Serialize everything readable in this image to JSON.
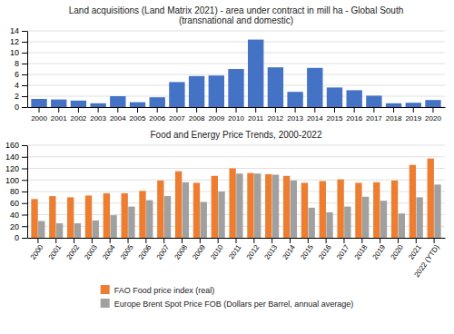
{
  "chart_data": [
    {
      "type": "bar",
      "title": "Land acquisitions (Land Matrix 2021) - area under contract in mill ha - Global South\n(transnational and domestic)",
      "categories": [
        "2000",
        "2001",
        "2002",
        "2003",
        "2004",
        "2005",
        "2006",
        "2007",
        "2008",
        "2009",
        "2010",
        "2011",
        "2012",
        "2013",
        "2014",
        "2015",
        "2016",
        "2017",
        "2018",
        "2019",
        "2020"
      ],
      "values": [
        1.5,
        1.4,
        1.2,
        0.7,
        2.0,
        0.9,
        1.8,
        4.6,
        5.7,
        5.8,
        7.0,
        12.4,
        7.3,
        2.8,
        7.2,
        3.6,
        3.1,
        2.1,
        0.7,
        0.8,
        1.3
      ],
      "color": "#4472c4",
      "ylim": [
        0,
        14
      ],
      "yticks": [
        0,
        2,
        4,
        6,
        8,
        10,
        12,
        14
      ],
      "grid": true
    },
    {
      "type": "bar",
      "title": "Food and Energy Price Trends, 2000-2022",
      "categories": [
        "2000",
        "2001",
        "2002",
        "2003",
        "2004",
        "2005",
        "2006",
        "2007",
        "2008",
        "2009",
        "2010",
        "2011",
        "2012",
        "2013",
        "2014",
        "2015",
        "2016",
        "2017",
        "2018",
        "2019",
        "2020",
        "2021",
        "2022 (YTD)"
      ],
      "series": [
        {
          "name": "FAO Food price index (real)",
          "color": "#ed7d31",
          "values": [
            67,
            72,
            70,
            73,
            77,
            77,
            81,
            99,
            115,
            95,
            107,
            120,
            112,
            110,
            107,
            95,
            98,
            101,
            95,
            96,
            99,
            126,
            137
          ]
        },
        {
          "name": "Europe Brent Spot Price FOB (Dollars per Barrel, annual average)",
          "color": "#a0a0a0",
          "values": [
            29,
            25,
            25,
            30,
            39,
            54,
            65,
            72,
            96,
            62,
            80,
            111,
            111,
            109,
            99,
            52,
            44,
            54,
            71,
            64,
            42,
            70,
            92
          ]
        }
      ],
      "ylim": [
        0,
        160
      ],
      "yticks": [
        0,
        20,
        40,
        60,
        80,
        100,
        120,
        140,
        160
      ],
      "grid": true,
      "legend": "bottom"
    }
  ]
}
